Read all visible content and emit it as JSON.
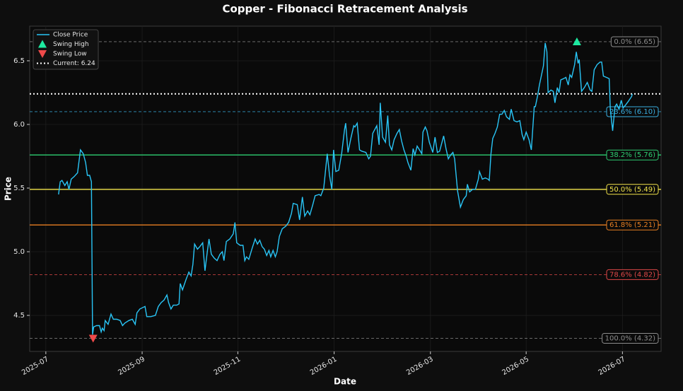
{
  "chart_data": {
    "type": "line",
    "title": "Copper - Fibonacci Retracement Analysis",
    "xlabel": "Date",
    "ylabel": "Price",
    "x": [
      2025.522,
      2025.525,
      2025.528,
      2025.533,
      2025.537,
      2025.54,
      2025.544,
      2025.549,
      2025.555,
      2025.56,
      2025.565,
      2025.569,
      2025.572,
      2025.576,
      2025.579,
      2025.581,
      2025.583,
      2025.588,
      2025.593,
      2025.596,
      2025.598,
      2025.601,
      2025.603,
      2025.608,
      2025.613,
      2025.617,
      2025.623,
      2025.629,
      2025.633,
      2025.637,
      2025.644,
      2025.65,
      2025.655,
      2025.658,
      2025.663,
      2025.672,
      2025.675,
      2025.682,
      2025.69,
      2025.695,
      2025.7,
      2025.705,
      2025.71,
      2025.713,
      2025.717,
      2025.721,
      2025.727,
      2025.731,
      2025.733,
      2025.737,
      2025.743,
      2025.748,
      2025.752,
      2025.755,
      2025.758,
      2025.763,
      2025.767,
      2025.772,
      2025.776,
      2025.78,
      2025.783,
      2025.787,
      2025.792,
      2025.797,
      2025.802,
      2025.806,
      2025.809,
      2025.813,
      2025.819,
      2025.825,
      2025.828,
      2025.831,
      2025.837,
      2025.842,
      2025.845,
      2025.848,
      2025.852,
      2025.858,
      2025.863,
      2025.867,
      2025.871,
      2025.875,
      2025.879,
      2025.883,
      2025.887,
      2025.89,
      2025.894,
      2025.898,
      2025.901,
      2025.905,
      2025.91,
      2025.916,
      2025.921,
      2025.926,
      2025.929,
      2025.936,
      2025.94,
      2025.945,
      2025.949,
      2025.954,
      2025.958,
      2025.963,
      2025.967,
      2025.974,
      2025.977,
      2025.982,
      2025.988,
      2025.992,
      2025.996,
      2025.999,
      2026.003,
      2026.008,
      2026.013,
      2026.018,
      2026.02,
      2026.024,
      2026.029,
      2026.034,
      2026.036,
      2026.04,
      2026.044,
      2026.048,
      2026.055,
      2026.06,
      2026.063,
      2026.067,
      2026.074,
      2026.078,
      2026.08,
      2026.084,
      2026.089,
      2026.093,
      2026.096,
      2026.1,
      2026.104,
      2026.109,
      2026.113,
      2026.117,
      2026.121,
      2026.125,
      2026.128,
      2026.133,
      2026.137,
      2026.14,
      2026.144,
      2026.148,
      2026.152,
      2026.154,
      2026.158,
      2026.161,
      2026.165,
      2026.171,
      2026.175,
      2026.179,
      2026.183,
      2026.19,
      2026.194,
      2026.198,
      2026.202,
      2026.206,
      2026.209,
      2026.214,
      2026.219,
      2026.224,
      2026.229,
      2026.231,
      2026.235,
      2026.24,
      2026.245,
      2026.25,
      2026.252,
      2026.257,
      2026.262,
      2026.267,
      2026.269,
      2026.272,
      2026.275,
      2026.279,
      2026.283,
      2026.287,
      2026.291,
      2026.295,
      2026.299,
      2026.304,
      2026.307,
      2026.312,
      2026.317,
      2026.322,
      2026.326,
      2026.329,
      2026.333,
      2026.338,
      2026.342,
      2026.347,
      2026.349,
      2026.353,
      2026.356,
      2026.363,
      2026.366,
      2026.369,
      2026.371,
      2026.376,
      2026.38,
      2026.383,
      2026.387,
      2026.39,
      2026.393,
      2026.398,
      2026.402,
      2026.406,
      2026.409,
      2026.412,
      2026.417,
      2026.42,
      2026.423,
      2026.425,
      2026.429,
      2026.434,
      2026.439,
      2026.444,
      2026.447,
      2026.451,
      2026.456,
      2026.461,
      2026.464,
      2026.467,
      2026.472,
      2026.477,
      2026.479,
      2026.483,
      2026.487,
      2026.49,
      2026.494,
      2026.498,
      2026.501,
      2026.505,
      2026.51,
      2026.516,
      2026.517
    ],
    "series": [
      {
        "name": "Close Price",
        "color": "#29c5f6",
        "values": [
          5.45,
          5.55,
          5.56,
          5.52,
          5.55,
          5.49,
          5.57,
          5.59,
          5.62,
          5.8,
          5.77,
          5.7,
          5.6,
          5.6,
          5.55,
          4.35,
          4.41,
          4.42,
          4.42,
          4.37,
          4.4,
          4.38,
          4.46,
          4.43,
          4.51,
          4.47,
          4.47,
          4.46,
          4.42,
          4.44,
          4.46,
          4.47,
          4.43,
          4.52,
          4.55,
          4.57,
          4.49,
          4.49,
          4.5,
          4.57,
          4.6,
          4.62,
          4.66,
          4.6,
          4.55,
          4.58,
          4.58,
          4.59,
          4.75,
          4.7,
          4.78,
          4.84,
          4.81,
          4.9,
          5.06,
          5.02,
          5.04,
          5.07,
          4.85,
          5.0,
          5.1,
          4.98,
          4.95,
          4.93,
          4.98,
          5.0,
          4.93,
          5.08,
          5.1,
          5.14,
          5.23,
          5.07,
          5.05,
          5.05,
          4.93,
          4.96,
          4.94,
          5.03,
          5.1,
          5.06,
          5.09,
          5.04,
          5.02,
          4.97,
          5.01,
          4.96,
          5.01,
          4.96,
          5.0,
          5.12,
          5.18,
          5.2,
          5.23,
          5.3,
          5.38,
          5.37,
          5.25,
          5.43,
          5.28,
          5.32,
          5.29,
          5.37,
          5.44,
          5.45,
          5.44,
          5.5,
          5.77,
          5.6,
          5.49,
          5.8,
          5.63,
          5.64,
          5.77,
          5.96,
          6.01,
          5.78,
          5.89,
          5.99,
          5.98,
          6.01,
          5.8,
          5.79,
          5.78,
          5.73,
          5.75,
          5.93,
          5.99,
          5.84,
          6.17,
          5.9,
          5.86,
          6.07,
          5.84,
          5.8,
          5.88,
          5.93,
          5.96,
          5.87,
          5.8,
          5.75,
          5.7,
          5.64,
          5.81,
          5.76,
          5.83,
          5.8,
          5.77,
          5.94,
          5.98,
          5.95,
          5.86,
          5.78,
          5.9,
          5.78,
          5.79,
          5.91,
          5.81,
          5.73,
          5.76,
          5.78,
          5.73,
          5.48,
          5.35,
          5.41,
          5.44,
          5.53,
          5.47,
          5.49,
          5.49,
          5.57,
          5.63,
          5.57,
          5.58,
          5.57,
          5.56,
          5.77,
          5.89,
          5.93,
          5.98,
          6.08,
          6.08,
          6.11,
          6.06,
          6.04,
          6.12,
          6.03,
          6.02,
          6.03,
          5.92,
          5.88,
          5.94,
          5.88,
          5.8,
          6.14,
          6.14,
          6.23,
          6.31,
          6.46,
          6.64,
          6.57,
          6.25,
          6.27,
          6.26,
          6.17,
          6.29,
          6.25,
          6.35,
          6.36,
          6.37,
          6.31,
          6.39,
          6.37,
          6.47,
          6.57,
          6.48,
          6.51,
          6.26,
          6.29,
          6.33,
          6.27,
          6.26,
          6.43,
          6.47,
          6.49,
          6.49,
          6.38,
          6.37,
          6.36,
          6.12,
          5.95,
          6.14,
          6.16,
          6.12,
          6.19,
          6.13,
          6.15,
          6.18,
          6.22,
          6.24
        ]
      }
    ],
    "swing_high": {
      "name": "Swing High",
      "color": "#1de9a0",
      "x": 2026.421,
      "y": 6.65
    },
    "swing_low": {
      "name": "Swing Low",
      "color": "#f04a4a",
      "x": 2025.582,
      "y": 4.32
    },
    "current": {
      "name": "Current: 6.24",
      "value": 6.24,
      "color": "#ffffff"
    },
    "levels": [
      {
        "label": "0.0% (6.65)",
        "value": 6.65,
        "color": "#8c8c8c",
        "style": "dashed"
      },
      {
        "label": "23.6% (6.10)",
        "value": 6.1,
        "color": "#3aaee0",
        "style": "dashed"
      },
      {
        "label": "38.2% (5.76)",
        "value": 5.76,
        "color": "#2ecc71",
        "style": "solid"
      },
      {
        "label": "50.0% (5.49)",
        "value": 5.49,
        "color": "#f1e34a",
        "style": "solid"
      },
      {
        "label": "61.8% (5.21)",
        "value": 5.21,
        "color": "#e67e22",
        "style": "solid"
      },
      {
        "label": "78.6% (4.82)",
        "value": 4.82,
        "color": "#e04848",
        "style": "dashed"
      },
      {
        "label": "100.0% (4.32)",
        "value": 4.32,
        "color": "#8c8c8c",
        "style": "dashed"
      }
    ],
    "xlim": [
      2025.472,
      2026.567
    ],
    "ylim": [
      4.217,
      6.772
    ],
    "xticks": [
      {
        "value": 2025.5,
        "label": "2025-07"
      },
      {
        "value": 2025.667,
        "label": "2025-09"
      },
      {
        "value": 2025.833,
        "label": "2025-11"
      },
      {
        "value": 2026.0,
        "label": "2026-01"
      },
      {
        "value": 2026.167,
        "label": "2026-03"
      },
      {
        "value": 2026.333,
        "label": "2026-05"
      },
      {
        "value": 2026.5,
        "label": "2026-07"
      }
    ],
    "yticks": [
      4.5,
      {
        "value": 5,
        "label": "5.0"
      },
      5.5,
      {
        "value": 6,
        "label": "6.0"
      },
      6.5
    ],
    "grid": true
  }
}
